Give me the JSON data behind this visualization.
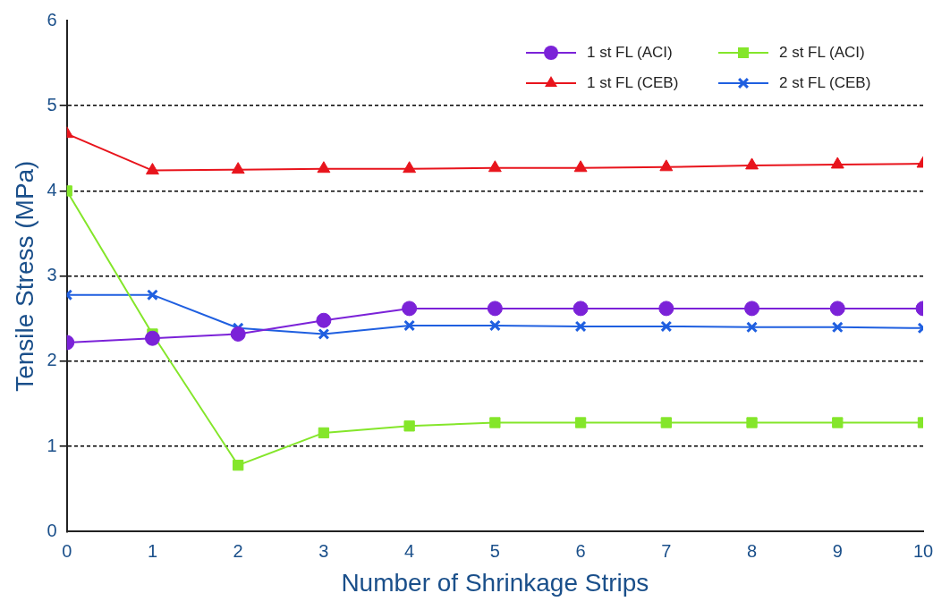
{
  "chart_data": {
    "type": "line",
    "xlabel": "Number of Shrinkage Strips",
    "ylabel": "Tensile Stress (MPa)",
    "x": [
      0,
      1,
      2,
      3,
      4,
      5,
      6,
      7,
      8,
      9,
      10
    ],
    "xlim": [
      0,
      10
    ],
    "xticks": [
      0,
      1,
      2,
      3,
      4,
      5,
      6,
      7,
      8,
      9,
      10
    ],
    "ylim": [
      0,
      6
    ],
    "yticks": [
      0,
      1,
      2,
      3,
      4,
      5,
      6
    ],
    "grid": "y",
    "line_style": "solid",
    "legend": "top right",
    "series": [
      {
        "name": "1 st FL (ACI)",
        "color": "#7b22d8",
        "marker": "circle",
        "values": [
          2.22,
          2.27,
          2.32,
          2.48,
          2.62,
          2.62,
          2.62,
          2.62,
          2.62,
          2.62,
          2.62
        ]
      },
      {
        "name": "1 st FL (CEB)",
        "color": "#e8141c",
        "marker": "triangle",
        "values": [
          4.67,
          4.24,
          4.25,
          4.26,
          4.26,
          4.27,
          4.27,
          4.28,
          4.3,
          4.31,
          4.32
        ]
      },
      {
        "name": "2 st FL (ACI)",
        "color": "#84e62a",
        "marker": "square",
        "values": [
          4.0,
          2.32,
          0.78,
          1.16,
          1.24,
          1.28,
          1.28,
          1.28,
          1.28,
          1.28,
          1.28
        ]
      },
      {
        "name": "2 st FL (CEB)",
        "color": "#1f5fe0",
        "marker": "cross",
        "values": [
          2.78,
          2.78,
          2.39,
          2.32,
          2.42,
          2.42,
          2.41,
          2.41,
          2.4,
          2.4,
          2.39
        ]
      }
    ]
  }
}
